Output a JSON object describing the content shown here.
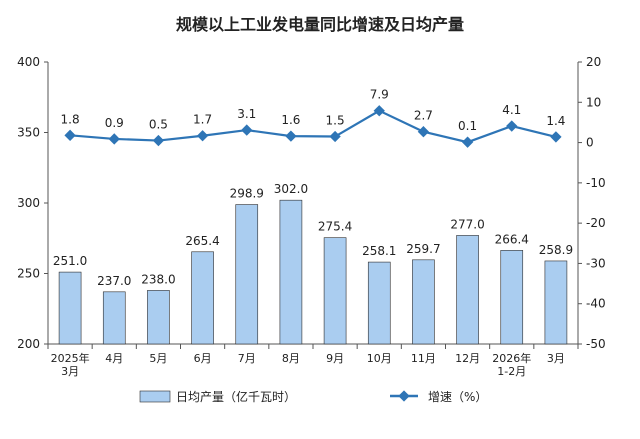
{
  "chart_data": {
    "type": "bar+line",
    "title": "规模以上工业发电量同比增速及日均产量",
    "categories": [
      [
        "2025年",
        "3月"
      ],
      [
        "4月"
      ],
      [
        "5月"
      ],
      [
        "6月"
      ],
      [
        "7月"
      ],
      [
        "8月"
      ],
      [
        "9月"
      ],
      [
        "10月"
      ],
      [
        "11月"
      ],
      [
        "12月"
      ],
      [
        "2026年",
        "1-2月"
      ],
      [
        "3月"
      ]
    ],
    "series": [
      {
        "name": "日均产量（亿千瓦时）",
        "type": "bar",
        "axis": "left",
        "values": [
          251.0,
          237.0,
          238.0,
          265.4,
          298.9,
          302.0,
          275.4,
          258.1,
          259.7,
          277.0,
          266.4,
          258.9
        ],
        "labels": [
          "251.0",
          "237.0",
          "238.0",
          "265.4",
          "298.9",
          "302.0",
          "275.4",
          "258.1",
          "259.7",
          "277.0",
          "266.4",
          "258.9"
        ],
        "color": "#aacdf0"
      },
      {
        "name": "增速（%）",
        "type": "line",
        "axis": "right",
        "values": [
          1.8,
          0.9,
          0.5,
          1.7,
          3.1,
          1.6,
          1.5,
          7.9,
          2.7,
          0.1,
          4.1,
          1.4
        ],
        "labels": [
          "1.8",
          "0.9",
          "0.5",
          "1.7",
          "3.1",
          "1.6",
          "1.5",
          "7.9",
          "2.7",
          "0.1",
          "4.1",
          "1.4"
        ],
        "color": "#2e75b6"
      }
    ],
    "y_left": {
      "range": [
        200,
        400
      ],
      "ticks": [
        "200",
        "250",
        "300",
        "350",
        "400"
      ]
    },
    "y_right": {
      "range": [
        -50,
        20
      ],
      "ticks": [
        "20",
        "10",
        "0",
        "-10",
        "-20",
        "-30",
        "-40",
        "-50"
      ]
    },
    "grid": false,
    "legend": "bottom"
  }
}
